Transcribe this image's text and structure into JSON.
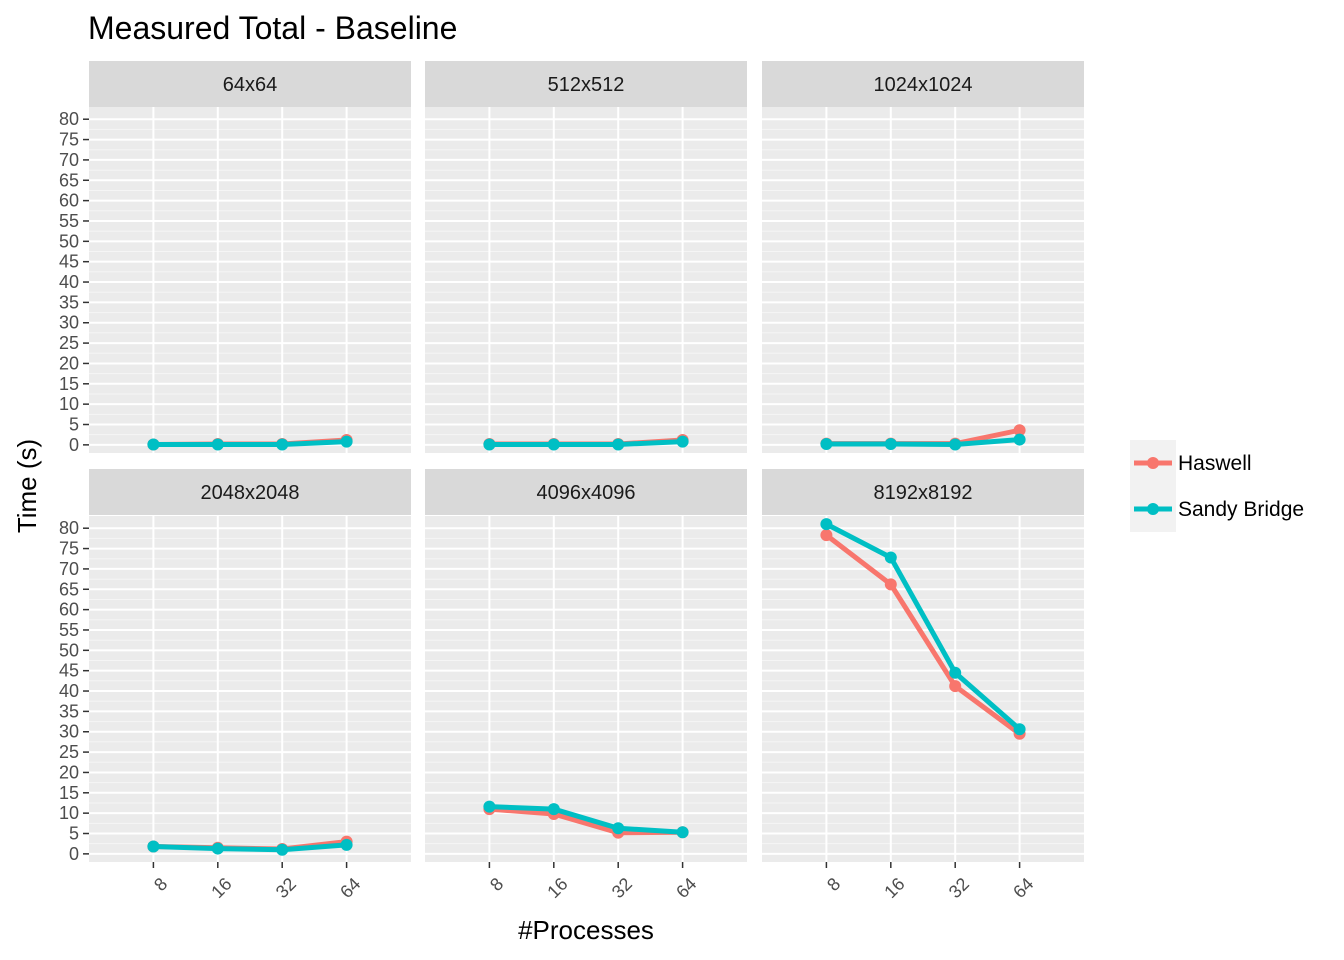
{
  "chart_data": {
    "type": "line",
    "title": "Measured Total - Baseline",
    "xlabel": "#Processes",
    "ylabel": "Time (s)",
    "categories": [
      "8",
      "16",
      "32",
      "64"
    ],
    "yticks": [
      0,
      5,
      10,
      15,
      20,
      25,
      30,
      35,
      40,
      45,
      50,
      55,
      60,
      65,
      70,
      75,
      80
    ],
    "ylim": [
      -2,
      83
    ],
    "grid": true,
    "legend_position": "right",
    "legend": [
      {
        "name": "Haswell",
        "color": "#F8766D"
      },
      {
        "name": "Sandy Bridge",
        "color": "#00BFC4"
      }
    ],
    "panels": [
      {
        "label": "64x64",
        "series": [
          {
            "name": "Haswell",
            "values": [
              0.1,
              0.2,
              0.2,
              1.2
            ]
          },
          {
            "name": "Sandy Bridge",
            "values": [
              0.1,
              0.1,
              0.1,
              0.8
            ]
          }
        ]
      },
      {
        "label": "512x512",
        "series": [
          {
            "name": "Haswell",
            "values": [
              0.2,
              0.2,
              0.2,
              1.2
            ]
          },
          {
            "name": "Sandy Bridge",
            "values": [
              0.1,
              0.1,
              0.1,
              0.8
            ]
          }
        ]
      },
      {
        "label": "1024x1024",
        "series": [
          {
            "name": "Haswell",
            "values": [
              0.3,
              0.3,
              0.3,
              3.6
            ]
          },
          {
            "name": "Sandy Bridge",
            "values": [
              0.2,
              0.2,
              0.1,
              1.3
            ]
          }
        ]
      },
      {
        "label": "2048x2048",
        "series": [
          {
            "name": "Haswell",
            "values": [
              1.8,
              1.5,
              1.2,
              3.0
            ]
          },
          {
            "name": "Sandy Bridge",
            "values": [
              1.8,
              1.3,
              1.0,
              2.2
            ]
          }
        ]
      },
      {
        "label": "4096x4096",
        "series": [
          {
            "name": "Haswell",
            "values": [
              11.0,
              9.8,
              5.2,
              5.3
            ]
          },
          {
            "name": "Sandy Bridge",
            "values": [
              11.6,
              11.0,
              6.3,
              5.3
            ]
          }
        ]
      },
      {
        "label": "8192x8192",
        "series": [
          {
            "name": "Haswell",
            "values": [
              78.3,
              66.2,
              41.2,
              29.5
            ]
          },
          {
            "name": "Sandy Bridge",
            "values": [
              81.0,
              72.8,
              44.5,
              30.6
            ]
          }
        ]
      }
    ]
  }
}
